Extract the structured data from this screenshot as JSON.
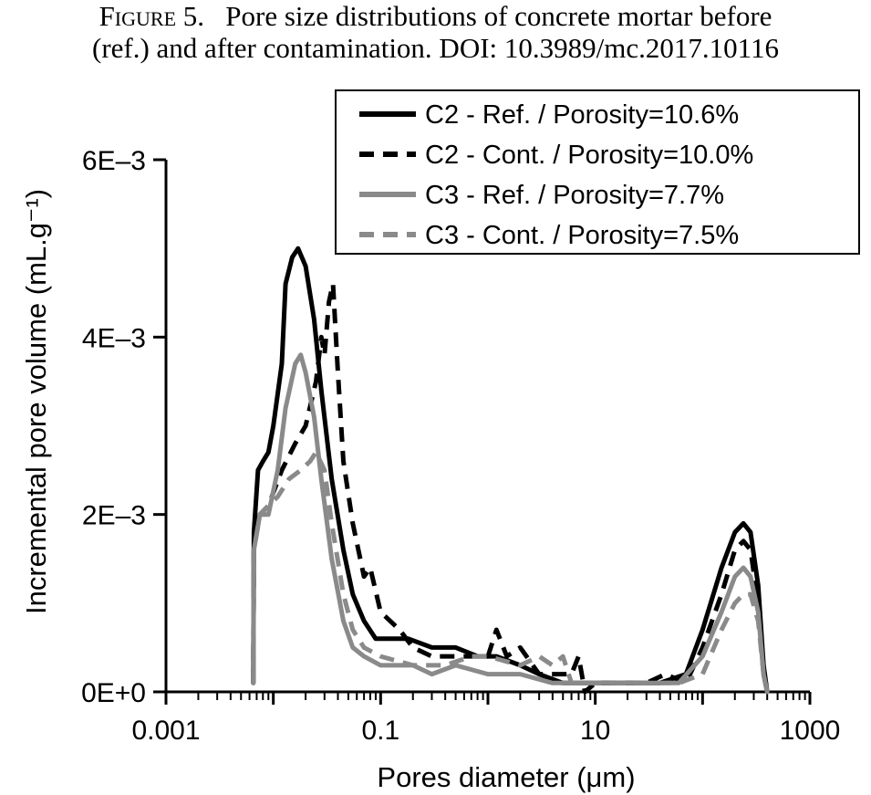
{
  "caption": {
    "label": "Figure 5.",
    "line1": "Pore size distributions of concrete mortar before",
    "line2": "(ref.) and after contamination.  DOI: 10.3989/mc.2017.10116"
  },
  "chart_data": {
    "type": "line",
    "title": "",
    "xlabel": "Pores diameter (μm)",
    "ylabel": "Incremental pore volume (mL.g⁻¹)",
    "xscale": "log",
    "xlim": [
      0.001,
      1000
    ],
    "ylim": [
      0,
      0.006
    ],
    "x_tick_labels": [
      "0.001",
      "0.1",
      "10",
      "1000"
    ],
    "y_tick_labels": [
      "0E+0",
      "2E–3",
      "4E–3",
      "6E–3"
    ],
    "legend_position": "top-right",
    "grid": false,
    "series": [
      {
        "name": "C2 - Ref. / Porosity=10.6%",
        "color": "#000000",
        "dash": "solid",
        "points": [
          [
            0.0065,
            0.0001
          ],
          [
            0.0066,
            0.0018
          ],
          [
            0.0072,
            0.0025
          ],
          [
            0.008,
            0.0026
          ],
          [
            0.009,
            0.0027
          ],
          [
            0.01,
            0.003
          ],
          [
            0.012,
            0.0037
          ],
          [
            0.013,
            0.0046
          ],
          [
            0.015,
            0.0049
          ],
          [
            0.017,
            0.005
          ],
          [
            0.02,
            0.0048
          ],
          [
            0.024,
            0.0042
          ],
          [
            0.028,
            0.0034
          ],
          [
            0.035,
            0.0024
          ],
          [
            0.045,
            0.0016
          ],
          [
            0.055,
            0.0011
          ],
          [
            0.07,
            0.0008
          ],
          [
            0.09,
            0.0006
          ],
          [
            0.12,
            0.0006
          ],
          [
            0.18,
            0.0006
          ],
          [
            0.3,
            0.0005
          ],
          [
            0.5,
            0.0005
          ],
          [
            0.8,
            0.0004
          ],
          [
            1.2,
            0.0004
          ],
          [
            2,
            0.0003
          ],
          [
            3,
            0.0002
          ],
          [
            5,
            0.0001
          ],
          [
            10,
            0.0001
          ],
          [
            20,
            0.0001
          ],
          [
            40,
            0.0001
          ],
          [
            70,
            0.0002
          ],
          [
            100,
            0.0007
          ],
          [
            150,
            0.0014
          ],
          [
            200,
            0.0018
          ],
          [
            240,
            0.0019
          ],
          [
            280,
            0.0018
          ],
          [
            330,
            0.0012
          ],
          [
            370,
            0.0003
          ],
          [
            400,
            0.0
          ]
        ]
      },
      {
        "name": "C2 - Cont. / Porosity=10.0%",
        "color": "#000000",
        "dash": "dashed",
        "points": [
          [
            0.0065,
            0.0001
          ],
          [
            0.0066,
            0.0017
          ],
          [
            0.0075,
            0.002
          ],
          [
            0.009,
            0.0021
          ],
          [
            0.012,
            0.0025
          ],
          [
            0.016,
            0.0028
          ],
          [
            0.02,
            0.003
          ],
          [
            0.025,
            0.0035
          ],
          [
            0.028,
            0.004
          ],
          [
            0.03,
            0.0038
          ],
          [
            0.033,
            0.0044
          ],
          [
            0.036,
            0.0046
          ],
          [
            0.04,
            0.0036
          ],
          [
            0.045,
            0.0026
          ],
          [
            0.055,
            0.0019
          ],
          [
            0.07,
            0.0013
          ],
          [
            0.08,
            0.0014
          ],
          [
            0.1,
            0.0009
          ],
          [
            0.15,
            0.0007
          ],
          [
            0.2,
            0.0005
          ],
          [
            0.3,
            0.0004
          ],
          [
            1,
            0.0004
          ],
          [
            1.2,
            0.0007
          ],
          [
            1.5,
            0.0004
          ],
          [
            2,
            0.0005
          ],
          [
            3,
            0.0002
          ],
          [
            6,
            0.0002
          ],
          [
            7,
            0.0004
          ],
          [
            8,
            0.0
          ],
          [
            10,
            0.0001
          ],
          [
            30,
            0.0001
          ],
          [
            45,
            0.0002
          ],
          [
            70,
            0.0001
          ],
          [
            100,
            0.0005
          ],
          [
            150,
            0.0011
          ],
          [
            200,
            0.0016
          ],
          [
            240,
            0.0017
          ],
          [
            280,
            0.0016
          ],
          [
            330,
            0.001
          ],
          [
            370,
            0.0002
          ],
          [
            400,
            0.0
          ]
        ]
      },
      {
        "name": "C3 - Ref. / Porosity=7.7%",
        "color": "#8a8a8a",
        "dash": "solid",
        "points": [
          [
            0.0065,
            0.0001
          ],
          [
            0.0066,
            0.0016
          ],
          [
            0.0075,
            0.002
          ],
          [
            0.009,
            0.002
          ],
          [
            0.011,
            0.0025
          ],
          [
            0.013,
            0.0032
          ],
          [
            0.016,
            0.0037
          ],
          [
            0.018,
            0.0038
          ],
          [
            0.02,
            0.0036
          ],
          [
            0.024,
            0.0031
          ],
          [
            0.028,
            0.0024
          ],
          [
            0.035,
            0.0015
          ],
          [
            0.045,
            0.0008
          ],
          [
            0.055,
            0.0005
          ],
          [
            0.07,
            0.0004
          ],
          [
            0.1,
            0.0003
          ],
          [
            0.2,
            0.0003
          ],
          [
            0.3,
            0.0002
          ],
          [
            0.5,
            0.0003
          ],
          [
            1,
            0.0002
          ],
          [
            2,
            0.0002
          ],
          [
            4,
            0.0001
          ],
          [
            10,
            0.0001
          ],
          [
            30,
            0.0001
          ],
          [
            60,
            0.0001
          ],
          [
            100,
            0.0004
          ],
          [
            150,
            0.0009
          ],
          [
            200,
            0.0013
          ],
          [
            240,
            0.0014
          ],
          [
            280,
            0.0013
          ],
          [
            330,
            0.0009
          ],
          [
            370,
            0.0002
          ],
          [
            400,
            0.0
          ]
        ]
      },
      {
        "name": "C3 - Cont. / Porosity=7.5%",
        "color": "#8a8a8a",
        "dash": "dashed",
        "points": [
          [
            0.0065,
            0.0001
          ],
          [
            0.0066,
            0.0016
          ],
          [
            0.0075,
            0.002
          ],
          [
            0.009,
            0.0021
          ],
          [
            0.011,
            0.0022
          ],
          [
            0.014,
            0.0024
          ],
          [
            0.018,
            0.0025
          ],
          [
            0.022,
            0.0026
          ],
          [
            0.025,
            0.0027
          ],
          [
            0.03,
            0.0025
          ],
          [
            0.035,
            0.0019
          ],
          [
            0.045,
            0.0011
          ],
          [
            0.055,
            0.0007
          ],
          [
            0.07,
            0.0005
          ],
          [
            0.1,
            0.0004
          ],
          [
            0.2,
            0.0003
          ],
          [
            0.4,
            0.0003
          ],
          [
            0.7,
            0.0004
          ],
          [
            1,
            0.0004
          ],
          [
            2,
            0.0003
          ],
          [
            3,
            0.0004
          ],
          [
            4,
            0.0003
          ],
          [
            5,
            0.0004
          ],
          [
            6,
            0.0001
          ],
          [
            10,
            0.0001
          ],
          [
            30,
            0.0001
          ],
          [
            60,
            0.0001
          ],
          [
            100,
            0.0002
          ],
          [
            150,
            0.0007
          ],
          [
            200,
            0.001
          ],
          [
            240,
            0.0011
          ],
          [
            280,
            0.0011
          ],
          [
            330,
            0.0008
          ],
          [
            370,
            0.0002
          ],
          [
            400,
            0.0
          ]
        ]
      }
    ]
  }
}
